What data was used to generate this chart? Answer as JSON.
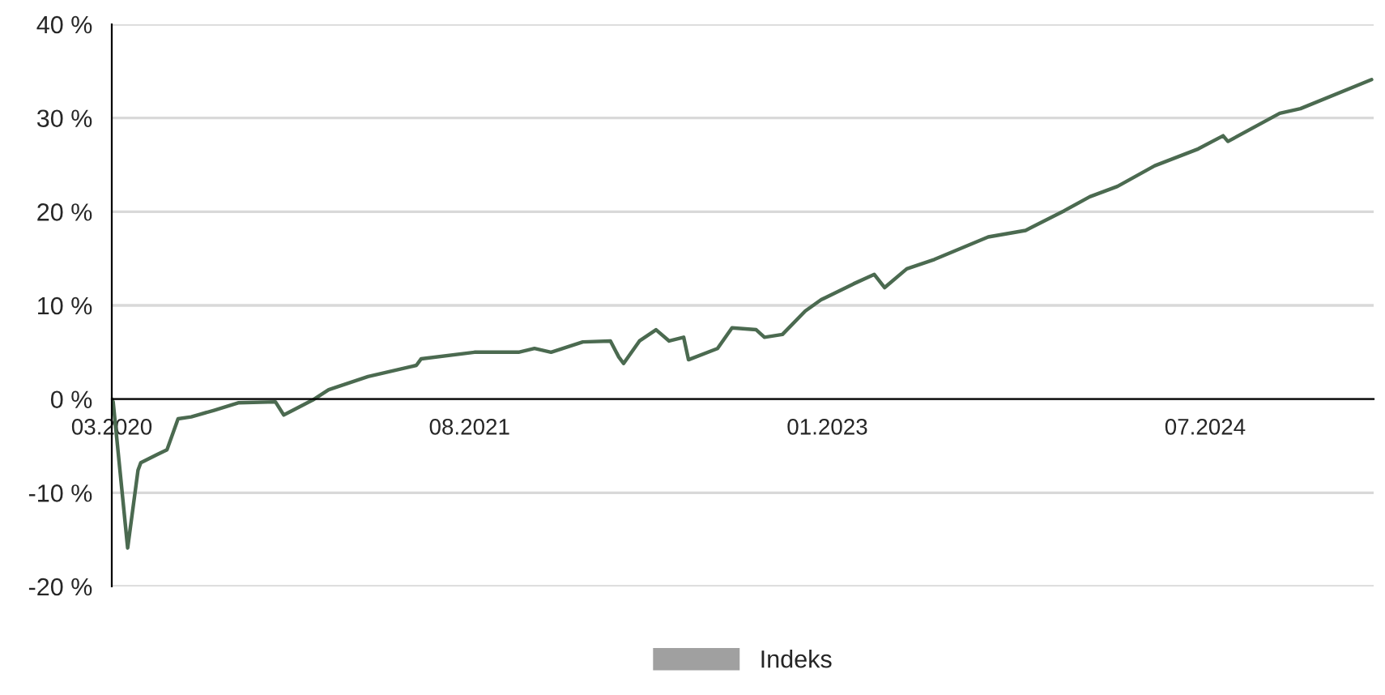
{
  "chart_data": {
    "type": "line",
    "x": [
      "2020-03-01",
      "2020-03-03",
      "2020-03-24",
      "2020-04-08",
      "2020-04-12",
      "2020-05-06",
      "2020-05-20",
      "2020-06-05",
      "2020-06-24",
      "2020-07-27",
      "2020-08-31",
      "2020-10-24",
      "2020-11-05",
      "2020-12-17",
      "2021-01-09",
      "2021-03-07",
      "2021-05-16",
      "2021-05-23",
      "2021-08-08",
      "2021-10-11",
      "2021-11-03",
      "2021-11-27",
      "2022-01-12",
      "2022-02-21",
      "2022-03-05",
      "2022-03-12",
      "2022-04-04",
      "2022-04-28",
      "2022-05-17",
      "2022-06-07",
      "2022-06-14",
      "2022-07-26",
      "2022-08-16",
      "2022-09-20",
      "2022-10-02",
      "2022-10-28",
      "2022-11-30",
      "2022-12-23",
      "2023-02-08",
      "2023-03-10",
      "2023-03-25",
      "2023-04-26",
      "2023-06-05",
      "2023-08-22",
      "2023-10-15",
      "2023-12-10",
      "2024-01-16",
      "2024-02-25",
      "2024-04-19",
      "2024-06-21",
      "2024-07-27",
      "2024-08-03",
      "2024-10-17",
      "2024-11-16",
      "2025-02-27"
    ],
    "series": [
      {
        "color": "#4b6a50",
        "values": [
          0,
          -0.3,
          -15.9,
          -7.6,
          -6.8,
          -5.9,
          -5.4,
          -2.1,
          -1.9,
          -1.2,
          -0.4,
          -0.3,
          -1.7,
          -0.1,
          1.0,
          2.4,
          3.6,
          4.3,
          5.0,
          5.0,
          5.4,
          5.0,
          6.1,
          6.2,
          4.5,
          3.8,
          6.2,
          7.4,
          6.2,
          6.6,
          4.2,
          5.4,
          7.6,
          7.4,
          6.6,
          6.9,
          9.4,
          10.6,
          12.3,
          13.3,
          11.9,
          13.9,
          14.9,
          17.3,
          18.0,
          20.1,
          21.6,
          22.7,
          24.9,
          26.7,
          28.1,
          27.5,
          30.5,
          31.0,
          34.1
        ]
      },
      {
        "name": "Indeks",
        "color": "#a0a0a0",
        "values": [
          null,
          null,
          null,
          null,
          null,
          null,
          null,
          null,
          null,
          null,
          null,
          null,
          null,
          null,
          null,
          null,
          null,
          null,
          null,
          null,
          null,
          null,
          null,
          null,
          null,
          null,
          null,
          null,
          null,
          null,
          null,
          null,
          null,
          null,
          null,
          null,
          null,
          null,
          null,
          null,
          null,
          null,
          null,
          null,
          null,
          null,
          null,
          null,
          null,
          null,
          null,
          null,
          null,
          null,
          null
        ]
      }
    ],
    "xlim": [
      "2020-03-01",
      "2025-03-02"
    ],
    "xticks": [
      {
        "value": "2020-03-01",
        "label": "03.2020"
      },
      {
        "value": "2021-08-01",
        "label": "08.2021"
      },
      {
        "value": "2023-01-01",
        "label": "01.2023"
      },
      {
        "value": "2024-07-01",
        "label": "07.2024"
      }
    ],
    "ylim": [
      -20,
      40
    ],
    "yticks": [
      {
        "value": -20,
        "label": "-20 %"
      },
      {
        "value": -10,
        "label": "-10 %"
      },
      {
        "value": 0,
        "label": "0 %"
      },
      {
        "value": 10,
        "label": "10 %"
      },
      {
        "value": 20,
        "label": "20 %"
      },
      {
        "value": 30,
        "label": "30 %"
      },
      {
        "value": 40,
        "label": "40 %"
      }
    ],
    "grid": "y",
    "legend": "bottom"
  }
}
